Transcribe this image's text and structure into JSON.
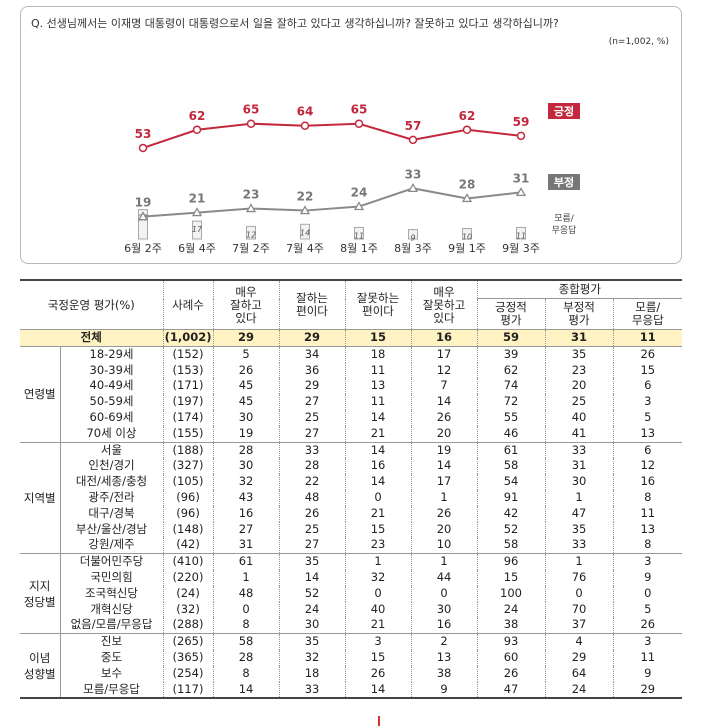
{
  "question": "Q. 선생님께서는 이재명 대통령이 대통령으로서 일을 잘하고 있다고 생각하십니까? 잘못하고 있다고 생각하십니까?",
  "note": "(n=1,002, %)",
  "chart_data": {
    "type": "line",
    "categories": [
      "6월 2주",
      "6월 4주",
      "7월 2주",
      "7월 4주",
      "8월 1주",
      "8월 3주",
      "9월 1주",
      "9월 3주"
    ],
    "series": [
      {
        "name": "긍정",
        "values": [
          53,
          62,
          65,
          64,
          65,
          57,
          62,
          59
        ],
        "color": "#c3283c"
      },
      {
        "name": "부정",
        "values": [
          19,
          21,
          23,
          22,
          24,
          33,
          28,
          31
        ],
        "color": "#8a8a8a"
      },
      {
        "name": "모름/무응답",
        "values": [
          28,
          17,
          12,
          14,
          11,
          9,
          10,
          11
        ],
        "color": "#bdbdbd"
      }
    ],
    "legend": {
      "pos_label": "긍정",
      "neg_label": "부정",
      "dk_label": "모름/\n무응답"
    }
  },
  "table": {
    "header": {
      "title": "국정운영 평가(%)",
      "n": "사례수",
      "c1": "매우\n잘하고\n있다",
      "c2": "잘하는\n편이다",
      "c3": "잘못하는\n편이다",
      "c4": "매우\n잘못하고\n있다",
      "overall": "종합평가",
      "o1": "긍정적\n평가",
      "o2": "부정적\n평가",
      "o3": "모름/\n무응답"
    },
    "total": {
      "label": "전체",
      "n": "(1,002)",
      "v": [
        "29",
        "29",
        "15",
        "16",
        "59",
        "31",
        "11"
      ]
    },
    "groups": [
      {
        "name": "연령별",
        "rows": [
          {
            "label": "18-29세",
            "n": "(152)",
            "v": [
              "5",
              "34",
              "18",
              "17",
              "39",
              "35",
              "26"
            ]
          },
          {
            "label": "30-39세",
            "n": "(153)",
            "v": [
              "26",
              "36",
              "11",
              "12",
              "62",
              "23",
              "15"
            ]
          },
          {
            "label": "40-49세",
            "n": "(171)",
            "v": [
              "45",
              "29",
              "13",
              "7",
              "74",
              "20",
              "6"
            ]
          },
          {
            "label": "50-59세",
            "n": "(197)",
            "v": [
              "45",
              "27",
              "11",
              "14",
              "72",
              "25",
              "3"
            ]
          },
          {
            "label": "60-69세",
            "n": "(174)",
            "v": [
              "30",
              "25",
              "14",
              "26",
              "55",
              "40",
              "5"
            ]
          },
          {
            "label": "70세 이상",
            "n": "(155)",
            "v": [
              "19",
              "27",
              "21",
              "20",
              "46",
              "41",
              "13"
            ]
          }
        ]
      },
      {
        "name": "지역별",
        "rows": [
          {
            "label": "서울",
            "n": "(188)",
            "v": [
              "28",
              "33",
              "14",
              "19",
              "61",
              "33",
              "6"
            ]
          },
          {
            "label": "인천/경기",
            "n": "(327)",
            "v": [
              "30",
              "28",
              "16",
              "14",
              "58",
              "31",
              "12"
            ]
          },
          {
            "label": "대전/세종/충청",
            "n": "(105)",
            "v": [
              "32",
              "22",
              "14",
              "17",
              "54",
              "30",
              "16"
            ]
          },
          {
            "label": "광주/전라",
            "n": "(96)",
            "v": [
              "43",
              "48",
              "0",
              "1",
              "91",
              "1",
              "8"
            ]
          },
          {
            "label": "대구/경북",
            "n": "(96)",
            "v": [
              "16",
              "26",
              "21",
              "26",
              "42",
              "47",
              "11"
            ]
          },
          {
            "label": "부산/울산/경남",
            "n": "(148)",
            "v": [
              "27",
              "25",
              "15",
              "20",
              "52",
              "35",
              "13"
            ]
          },
          {
            "label": "강원/제주",
            "n": "(42)",
            "v": [
              "31",
              "27",
              "23",
              "10",
              "58",
              "33",
              "8"
            ]
          }
        ]
      },
      {
        "name": "지지\n정당별",
        "rows": [
          {
            "label": "더불어민주당",
            "n": "(410)",
            "v": [
              "61",
              "35",
              "1",
              "1",
              "96",
              "1",
              "3"
            ]
          },
          {
            "label": "국민의힘",
            "n": "(220)",
            "v": [
              "1",
              "14",
              "32",
              "44",
              "15",
              "76",
              "9"
            ]
          },
          {
            "label": "조국혁신당",
            "n": "(24)",
            "v": [
              "48",
              "52",
              "0",
              "0",
              "100",
              "0",
              "0"
            ]
          },
          {
            "label": "개혁신당",
            "n": "(32)",
            "v": [
              "0",
              "24",
              "40",
              "30",
              "24",
              "70",
              "5"
            ]
          },
          {
            "label": "없음/모름/무응답",
            "n": "(288)",
            "v": [
              "8",
              "30",
              "21",
              "16",
              "38",
              "37",
              "26"
            ]
          }
        ]
      },
      {
        "name": "이념\n성향별",
        "rows": [
          {
            "label": "진보",
            "n": "(265)",
            "v": [
              "58",
              "35",
              "3",
              "2",
              "93",
              "4",
              "3"
            ]
          },
          {
            "label": "중도",
            "n": "(365)",
            "v": [
              "28",
              "32",
              "15",
              "13",
              "60",
              "29",
              "11"
            ]
          },
          {
            "label": "보수",
            "n": "(254)",
            "v": [
              "8",
              "18",
              "26",
              "38",
              "26",
              "64",
              "9"
            ]
          },
          {
            "label": "모름/무응답",
            "n": "(117)",
            "v": [
              "14",
              "33",
              "14",
              "9",
              "47",
              "24",
              "29"
            ]
          }
        ]
      }
    ]
  }
}
